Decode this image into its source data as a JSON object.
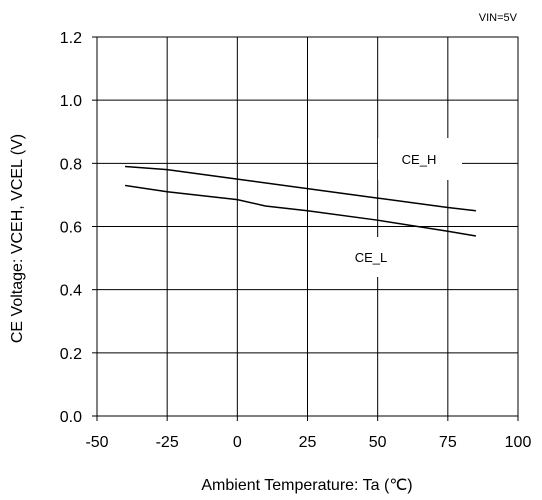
{
  "chart_data": {
    "type": "line",
    "note": "VIN=5V",
    "xlabel": "Ambient Temperature: Ta (℃)",
    "ylabel": "CE Voltage: VCEH, VCEL (V)",
    "xlim": [
      -50,
      100
    ],
    "ylim": [
      0.0,
      1.2
    ],
    "x_ticks": [
      -50,
      -25,
      0,
      25,
      50,
      75,
      100
    ],
    "x_tick_labels": [
      "-50",
      "-25",
      "0",
      "25",
      "50",
      "75",
      "100"
    ],
    "y_ticks": [
      0.0,
      0.2,
      0.4,
      0.6,
      0.8,
      1.0,
      1.2
    ],
    "y_tick_labels": [
      "0.0",
      "0.2",
      "0.4",
      "0.6",
      "0.8",
      "1.0",
      "1.2"
    ],
    "grid": true,
    "series": [
      {
        "name": "CE_H",
        "x": [
          -40,
          -25,
          0,
          25,
          50,
          75,
          85
        ],
        "y": [
          0.79,
          0.78,
          0.75,
          0.72,
          0.69,
          0.66,
          0.65
        ]
      },
      {
        "name": "CE_L",
        "x": [
          -40,
          -25,
          0,
          10,
          25,
          50,
          75,
          85
        ],
        "y": [
          0.73,
          0.71,
          0.685,
          0.665,
          0.65,
          0.62,
          0.585,
          0.57
        ]
      }
    ]
  }
}
